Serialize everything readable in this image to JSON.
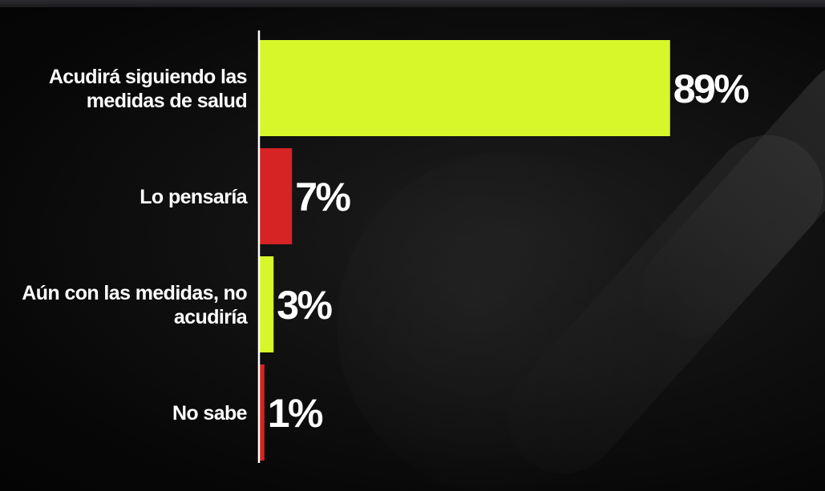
{
  "chart_data": {
    "type": "bar",
    "orientation": "horizontal",
    "categories": [
      [
        "Acudirá siguiendo las",
        "medidas de salud"
      ],
      [
        "Lo pensaría"
      ],
      [
        "Aún con las medidas, no",
        "acudiría"
      ],
      [
        "No sabe"
      ]
    ],
    "values": [
      89,
      7,
      3,
      1
    ],
    "value_labels": [
      "89%",
      "7%",
      "3%",
      "1%"
    ],
    "colors": [
      "#d7f72a",
      "#d62323",
      "#d7f72a",
      "#d62323"
    ],
    "axis_color": "#ffffff",
    "xlim": [
      0,
      100
    ],
    "grid": false,
    "legend": "none"
  }
}
